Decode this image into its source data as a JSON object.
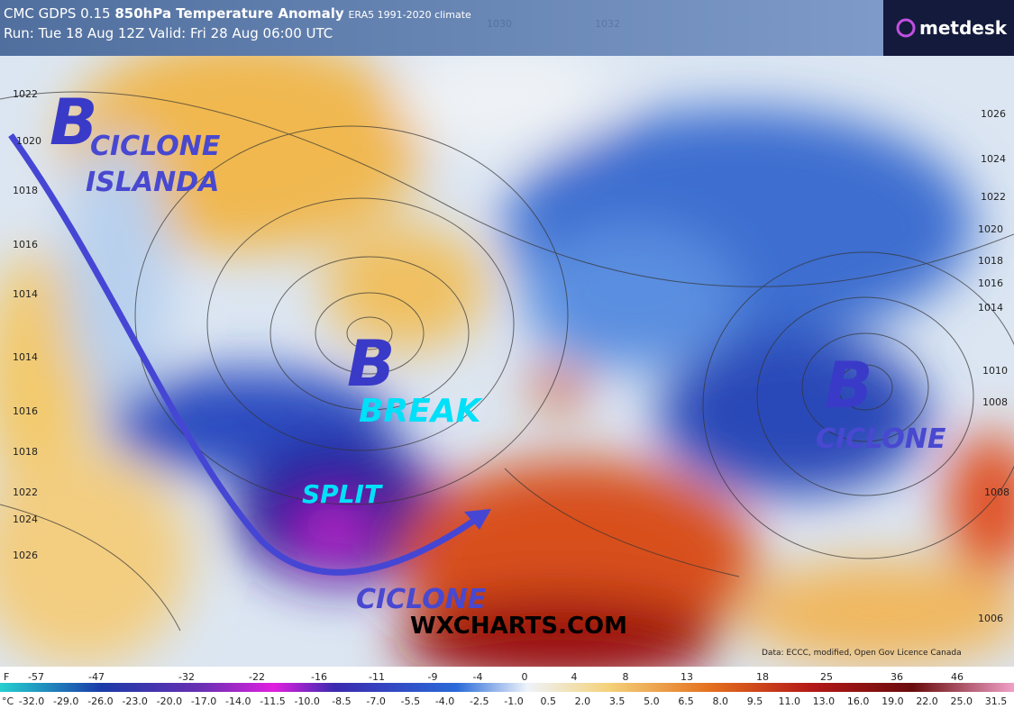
{
  "header": {
    "model": "CMC GDPS 0.15",
    "field": "850hPa Temperature Anomaly",
    "climate": "ERA5 1991-2020 climate",
    "run": "Run: Tue 18 Aug 12Z Valid: Fri 28 Aug 06:00 UTC",
    "logo": "metdesk"
  },
  "annotations": {
    "low_iceland": "B",
    "ciclone_iceland": "CICLONE",
    "islanda": "ISLANDA",
    "low_break": "B",
    "break": "BREAK",
    "split": "SPLIT",
    "ciclone_med": "CICLONE",
    "low_east": "B",
    "ciclone_east": "CICLONE",
    "watermark": "WXCHARTS.COM",
    "credit": "Data: ECCC, modified, Open Gov Licence Canada"
  },
  "isobar_labels": [
    "1022",
    "1020",
    "1018",
    "1016",
    "1014",
    "1014",
    "1016",
    "1018",
    "1022",
    "1024",
    "1026",
    "1030",
    "1032",
    "1026",
    "1024",
    "1022",
    "1020",
    "1018",
    "1016",
    "1014",
    "1010",
    "1008",
    "1008",
    "1006"
  ],
  "legend": {
    "f_unit": "F",
    "f_labels": [
      "-57",
      "-47",
      "-32",
      "-22",
      "-16",
      "-11",
      "-9",
      "-4",
      "0",
      "4",
      "8",
      "13",
      "18",
      "25",
      "36",
      "46"
    ],
    "c_unit": "°C",
    "c_labels": [
      "-32.0",
      "-29.0",
      "-26.0",
      "-23.0",
      "-20.0",
      "-17.0",
      "-14.0",
      "-11.5",
      "-10.0",
      "-8.5",
      "-7.0",
      "-5.5",
      "-4.0",
      "-2.5",
      "-1.0",
      "0.5",
      "2.0",
      "3.5",
      "5.0",
      "6.5",
      "8.0",
      "9.5",
      "11.0",
      "13.0",
      "16.0",
      "19.0",
      "22.0",
      "25.0",
      "31.5"
    ]
  }
}
